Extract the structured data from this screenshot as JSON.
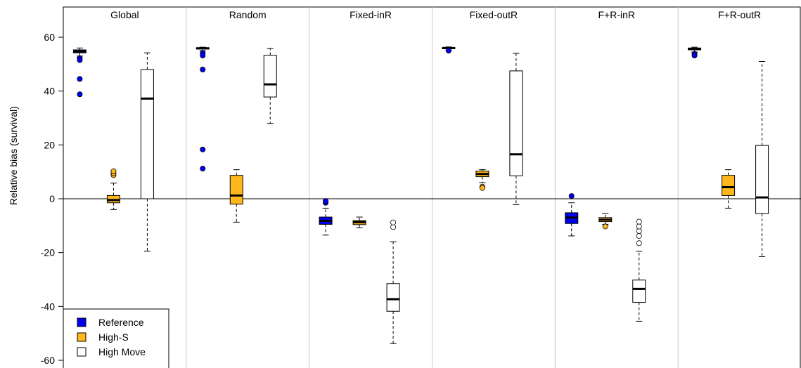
{
  "chart_data": {
    "type": "boxplot",
    "ylabel": "Relative bias (survival)",
    "ylim": [
      -62,
      63
    ],
    "yticks": [
      -60,
      -40,
      -20,
      0,
      20,
      40,
      60
    ],
    "reference_line": 0,
    "legend_position": "bottom-left",
    "legend": [
      {
        "label": "Reference",
        "color": "#0000ee"
      },
      {
        "label": "High-S",
        "color": "#ffb81c"
      },
      {
        "label": "High Move",
        "color": "#ffffff"
      }
    ],
    "panels": [
      {
        "title": "Global",
        "boxes": [
          {
            "series": "Reference",
            "whisker_low": 53,
            "q1": 54.2,
            "median": 54.7,
            "q3": 55.3,
            "whisker_high": 56,
            "outliers": [
              52.2,
              51.5,
              44.5,
              38.8
            ]
          },
          {
            "series": "High-S",
            "whisker_low": -4,
            "q1": -1.5,
            "median": -0.5,
            "q3": 1.2,
            "whisker_high": 5.8,
            "outliers": [
              8.8,
              9.5,
              10.2
            ]
          },
          {
            "series": "High Move",
            "whisker_low": -19.5,
            "q1": 0,
            "median": 37.2,
            "q3": 48,
            "whisker_high": 54.2,
            "outliers": []
          }
        ]
      },
      {
        "title": "Random",
        "boxes": [
          {
            "series": "Reference",
            "whisker_low": 55,
            "q1": 55.6,
            "median": 55.9,
            "q3": 56.1,
            "whisker_high": 56.3,
            "outliers": [
              54.2,
              53.2,
              48,
              18.3,
              11.2
            ]
          },
          {
            "series": "High-S",
            "whisker_low": -8.7,
            "q1": -2,
            "median": 1.2,
            "q3": 8.7,
            "whisker_high": 10.8,
            "outliers": []
          },
          {
            "series": "High Move",
            "whisker_low": 28,
            "q1": 37.8,
            "median": 42.5,
            "q3": 53.3,
            "whisker_high": 55.8,
            "outliers": []
          }
        ]
      },
      {
        "title": "Fixed-inR",
        "boxes": [
          {
            "series": "Reference",
            "whisker_low": -13.5,
            "q1": -9.5,
            "median": -8.2,
            "q3": -6.8,
            "whisker_high": -3.5,
            "outliers": [
              -1.5,
              -0.8
            ]
          },
          {
            "series": "High-S",
            "whisker_low": -10.8,
            "q1": -9.6,
            "median": -8.7,
            "q3": -8.1,
            "whisker_high": -6.8,
            "outliers": []
          },
          {
            "series": "High Move",
            "whisker_low": -53.8,
            "q1": -41.8,
            "median": -37.3,
            "q3": -31.5,
            "whisker_high": -16,
            "outliers": [
              -10.5,
              -8.8
            ]
          }
        ]
      },
      {
        "title": "Fixed-outR",
        "boxes": [
          {
            "series": "Reference",
            "whisker_low": 55.2,
            "q1": 55.7,
            "median": 56,
            "q3": 56.2,
            "whisker_high": 56.4,
            "outliers": [
              55
            ]
          },
          {
            "series": "High-S",
            "whisker_low": 6,
            "q1": 8.2,
            "median": 9.2,
            "q3": 10.3,
            "whisker_high": 10.8,
            "outliers": [
              4.5,
              4
            ]
          },
          {
            "series": "High Move",
            "whisker_low": -2.2,
            "q1": 8.5,
            "median": 16.5,
            "q3": 47.5,
            "whisker_high": 54,
            "outliers": []
          }
        ]
      },
      {
        "title": "F+R-inR",
        "boxes": [
          {
            "series": "Reference",
            "whisker_low": -13.8,
            "q1": -9.2,
            "median": -7,
            "q3": -5.2,
            "whisker_high": -1.5,
            "outliers": [
              1
            ]
          },
          {
            "series": "High-S",
            "whisker_low": -9.5,
            "q1": -8.5,
            "median": -7.8,
            "q3": -7,
            "whisker_high": -5.5,
            "outliers": [
              -10.3
            ]
          },
          {
            "series": "High Move",
            "whisker_low": -45.5,
            "q1": -38.5,
            "median": -33.5,
            "q3": -30.2,
            "whisker_high": -19.5,
            "outliers": [
              -16.5,
              -13.8,
              -12,
              -10.3,
              -8.5
            ]
          }
        ]
      },
      {
        "title": "F+R-outR",
        "boxes": [
          {
            "series": "Reference",
            "whisker_low": 54.5,
            "q1": 55.3,
            "median": 55.6,
            "q3": 56,
            "whisker_high": 56.3,
            "outliers": [
              53.8,
              53.2
            ]
          },
          {
            "series": "High-S",
            "whisker_low": -3.5,
            "q1": 1.2,
            "median": 4.3,
            "q3": 8.7,
            "whisker_high": 10.8,
            "outliers": []
          },
          {
            "series": "High Move",
            "whisker_low": -21.5,
            "q1": -5.5,
            "median": 0.5,
            "q3": 19.8,
            "whisker_high": 51,
            "outliers": []
          }
        ]
      }
    ]
  }
}
